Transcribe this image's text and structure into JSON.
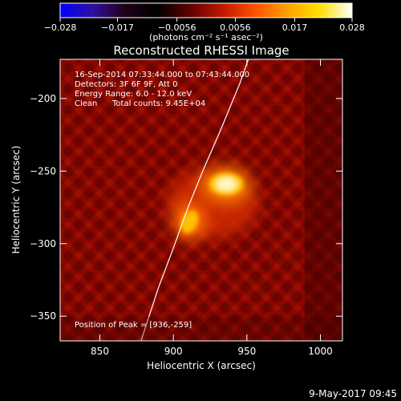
{
  "colorbar": {
    "ticks": [
      "−0.028",
      "−0.017",
      "−0.0056",
      "0.0056",
      "0.017",
      "0.028"
    ],
    "tick_values": [
      -0.028,
      -0.017,
      -0.0056,
      0.0056,
      0.017,
      0.028
    ],
    "range": [
      -0.028,
      0.028
    ],
    "units_label": "(photons cm⁻² s⁻¹ asec⁻²)",
    "colormap": [
      "#0000ff",
      "#3010a0",
      "#200018",
      "#000000",
      "#600000",
      "#c01800",
      "#ff5000",
      "#ffa000",
      "#ffe000",
      "#ffffff"
    ]
  },
  "chart_data": {
    "type": "heatmap",
    "title": "Reconstructed RHESSI Image",
    "xlabel": "Heliocentric X (arcsec)",
    "ylabel": "Heliocentric Y (arcsec)",
    "xlim": [
      823,
      1015
    ],
    "ylim": [
      -367,
      -173
    ],
    "xticks": [
      850,
      900,
      950,
      1000
    ],
    "xtick_labels": [
      "850",
      "900",
      "950",
      "1000"
    ],
    "yticks": [
      -200,
      -250,
      -300,
      -350
    ],
    "ytick_labels": [
      "−200",
      "−250",
      "−300",
      "−350"
    ],
    "sources": [
      {
        "x": 936,
        "y": -259,
        "peak": 0.028
      },
      {
        "x": 911,
        "y": -285,
        "peak": 0.021
      }
    ],
    "limb_curve": [
      [
        878,
        -367
      ],
      [
        890,
        -330
      ],
      [
        900,
        -303
      ],
      [
        910,
        -275
      ],
      [
        920,
        -250
      ],
      [
        932,
        -222
      ],
      [
        945,
        -190
      ],
      [
        951,
        -173
      ]
    ],
    "annotations": {
      "date_range": "16-Sep-2014 07:33:44.000 to 07:43:44.000",
      "detectors": "Detectors: 3F 6F 9F, Att 0",
      "energy": "Energy Range: 6.0 - 12.0 keV",
      "clean": "Clean",
      "total_counts": "Total counts: 9.45E+04",
      "peak": "Position of Peak = [936,-259]"
    },
    "colors": {
      "background": "#000000",
      "limb": "#ffffff",
      "text": "#ffffff"
    }
  },
  "footer": {
    "timestamp": "9-May-2017 09:45"
  }
}
